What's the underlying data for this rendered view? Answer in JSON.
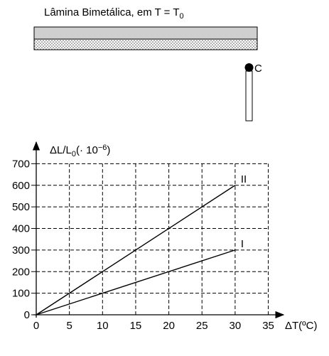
{
  "figure": {
    "caption_main": "Lâmina Bimetálica, em T = T",
    "caption_sub": "0",
    "point_label": "C"
  },
  "chart_data": {
    "type": "line",
    "y_label_parts": [
      "ΔL/L",
      "0",
      "(· 10",
      "−6",
      ")"
    ],
    "x_label": "ΔT(ºC)",
    "x": [
      0,
      30
    ],
    "series": [
      {
        "name": "I",
        "color": "#000000",
        "values": [
          0,
          300
        ]
      },
      {
        "name": "II",
        "color": "#000000",
        "values": [
          0,
          600
        ]
      }
    ],
    "xlim": [
      0,
      37.3
    ],
    "ylim": [
      0,
      800
    ],
    "xticks": [
      0,
      5,
      10,
      15,
      20,
      25,
      30,
      35
    ],
    "yticks": [
      0,
      100,
      200,
      300,
      400,
      500,
      600,
      700
    ],
    "grid": true
  }
}
